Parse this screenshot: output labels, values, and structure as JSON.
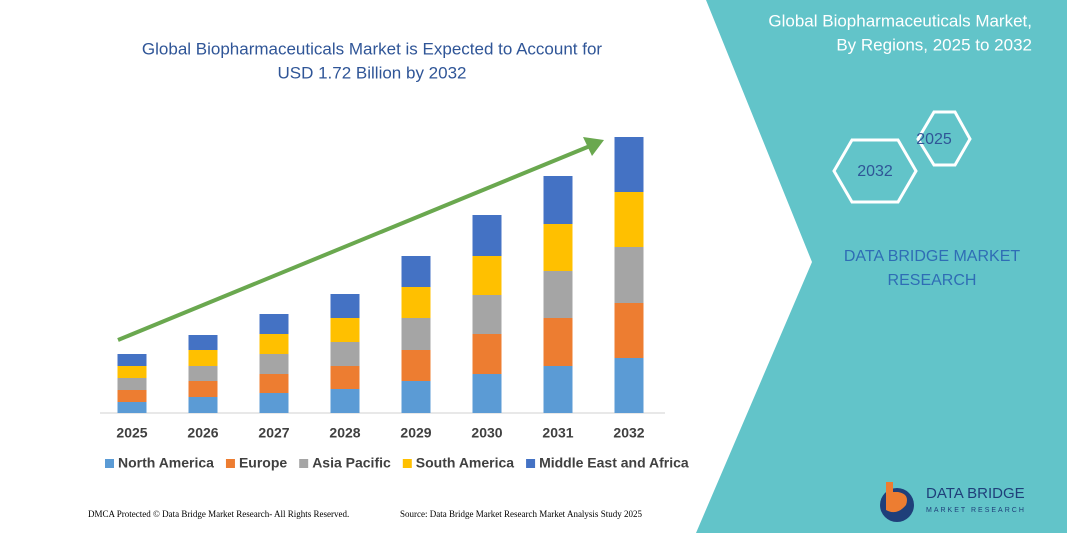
{
  "chart_data": {
    "type": "stacked_bar",
    "title": "Global Biopharmaceuticals Market is Expected to Account for",
    "subtitle": "USD 1.72 Billion by 2032",
    "categories": [
      "2025",
      "2026",
      "2027",
      "2028",
      "2029",
      "2030",
      "2031",
      "2032"
    ],
    "series": [
      {
        "name": "North America",
        "color": "#5b9bd5",
        "values": [
          11,
          16,
          20,
          24,
          32,
          39,
          47,
          55
        ]
      },
      {
        "name": "Europe",
        "color": "#ed7d31",
        "values": [
          12,
          16,
          19,
          23,
          31,
          40,
          48,
          55
        ]
      },
      {
        "name": "Asia Pacific",
        "color": "#a5a5a5",
        "values": [
          12,
          15,
          20,
          24,
          32,
          39,
          47,
          56
        ]
      },
      {
        "name": "South America",
        "color": "#ffc000",
        "values": [
          12,
          16,
          20,
          24,
          31,
          39,
          47,
          55
        ]
      },
      {
        "name": "Middle East and Africa",
        "color": "#4472c4",
        "values": [
          12,
          15,
          20,
          24,
          31,
          41,
          48,
          55
        ]
      }
    ],
    "legend": "bottom"
  },
  "panel": {
    "title_line1": "Global Biopharmaceuticals Market,",
    "title_line2": "By Regions, 2025 to 2032",
    "hex_start": "2025",
    "hex_end": "2032",
    "brand_line1": "DATA BRIDGE MARKET",
    "brand_line2": "RESEARCH"
  },
  "logo": {
    "name": "DATA BRIDGE",
    "tagline": "MARKET RESEARCH"
  },
  "footer": {
    "left": "DMCA Protected © Data Bridge Market Research- All Rights Reserved.",
    "right": "Source: Data Bridge Market Research Market Analysis Study 2025"
  }
}
